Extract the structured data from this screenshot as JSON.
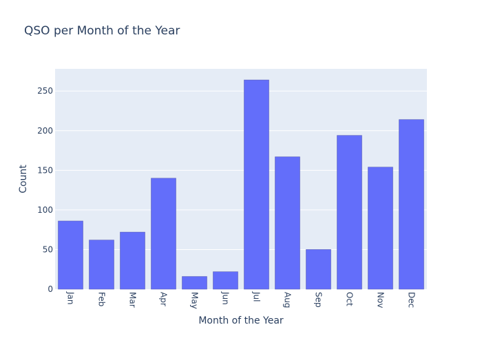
{
  "chart_data": {
    "type": "bar",
    "title": "QSO per Month of the Year",
    "xlabel": "Month of the Year",
    "ylabel": "Count",
    "categories": [
      "Jan",
      "Feb",
      "Mar",
      "Apr",
      "May",
      "Jun",
      "Jul",
      "Aug",
      "Sep",
      "Oct",
      "Nov",
      "Dec"
    ],
    "values": [
      86,
      62,
      72,
      140,
      16,
      22,
      264,
      167,
      50,
      194,
      154,
      214
    ],
    "ylim": [
      0,
      278
    ],
    "yticks": [
      0,
      50,
      100,
      150,
      200,
      250
    ],
    "grid": true,
    "legend": "none",
    "x_tick_rotation": "vertical",
    "colors": {
      "bar": "#636efa",
      "plot_background": "#e5ecf6",
      "text": "#2a3f5f",
      "gridline": "#ffffff"
    }
  }
}
